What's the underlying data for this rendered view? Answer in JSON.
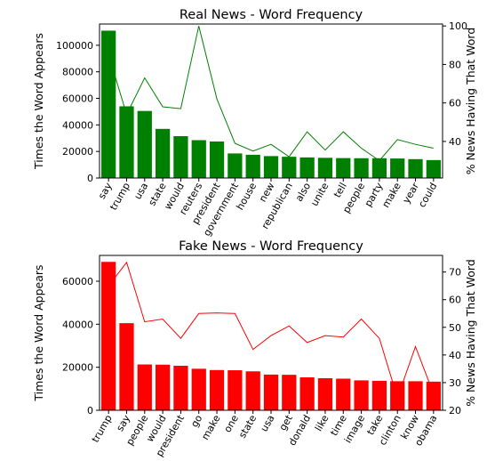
{
  "chart_data": [
    {
      "type": "bar",
      "title": "Real News - Word Frequency",
      "ylabel": "Times the Word Appears",
      "y2label": "% News Having That Word",
      "bar_color": "#008000",
      "line_color": "#008000",
      "ylim": [
        0,
        116000
      ],
      "y2lim": [
        21.0,
        101.0
      ],
      "yticks": [
        0,
        20000,
        40000,
        60000,
        80000,
        100000
      ],
      "y2ticks": [
        40,
        60,
        80,
        100
      ],
      "categories": [
        "say",
        "trump",
        "usa",
        "state",
        "would",
        "reuters",
        "president",
        "government",
        "house",
        "new",
        "republican",
        "also",
        "unite",
        "tell",
        "people",
        "party",
        "make",
        "year",
        "could"
      ],
      "series": [
        {
          "kind": "bar",
          "axis": "left",
          "values": [
            111000,
            54000,
            50500,
            37000,
            31500,
            28500,
            27500,
            18500,
            17500,
            16500,
            16000,
            15500,
            15200,
            15000,
            14900,
            14900,
            14700,
            14200,
            13500
          ]
        },
        {
          "kind": "line",
          "axis": "right",
          "values": [
            85,
            54,
            73,
            58,
            57,
            100,
            62,
            39,
            35,
            38.5,
            32,
            45,
            35.5,
            45,
            36.5,
            30,
            41,
            38.5,
            36.5
          ]
        }
      ]
    },
    {
      "type": "bar",
      "title": "Fake News - Word Frequency",
      "ylabel": "Times the Word Appears",
      "y2label": "% News Having That Word",
      "bar_color": "#ff0000",
      "line_color": "#ff0000",
      "ylim": [
        0,
        72000
      ],
      "y2lim": [
        20,
        76
      ],
      "yticks": [
        0,
        20000,
        40000,
        60000
      ],
      "y2ticks": [
        20,
        30,
        40,
        50,
        60,
        70
      ],
      "categories": [
        "trump",
        "say",
        "people",
        "would",
        "president",
        "go",
        "make",
        "one",
        "state",
        "usa",
        "get",
        "donald",
        "like",
        "time",
        "image",
        "take",
        "clinton",
        "know",
        "obama"
      ],
      "series": [
        {
          "kind": "bar",
          "axis": "left",
          "values": [
            69000,
            40500,
            21300,
            21200,
            20700,
            19300,
            18700,
            18600,
            18100,
            16600,
            16500,
            15300,
            14900,
            14700,
            13900,
            13700,
            13500,
            13500,
            13300
          ]
        },
        {
          "kind": "line",
          "axis": "right",
          "values": [
            65,
            73.5,
            52,
            53,
            46,
            55,
            55.2,
            55,
            42,
            47,
            50.5,
            44.5,
            47,
            46.5,
            53,
            46,
            24.5,
            43,
            26
          ]
        }
      ]
    }
  ]
}
